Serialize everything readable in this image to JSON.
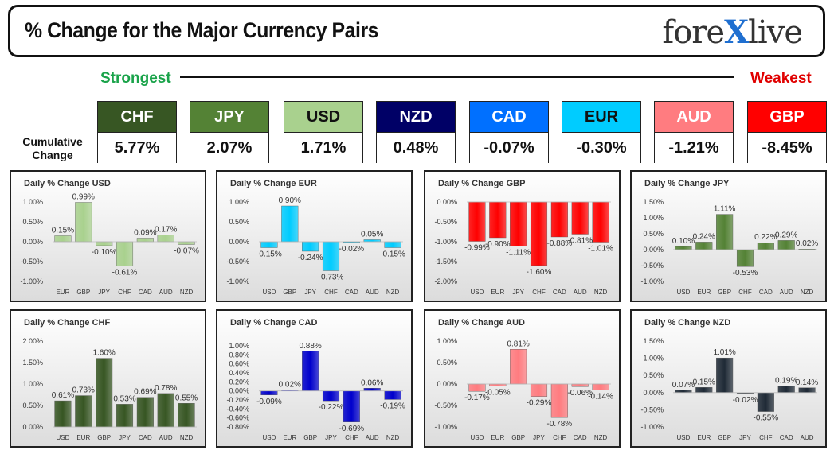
{
  "header": {
    "title": "% Change for the Major Currency Pairs",
    "logo_left": "fore",
    "logo_x": "X",
    "logo_right": "live"
  },
  "scale": {
    "strongest": "Strongest",
    "weakest": "Weakest"
  },
  "cumulative": {
    "label_line1": "Cumulative",
    "label_line2": "Change",
    "items": [
      {
        "code": "CHF",
        "value": "5.77%",
        "bg": "#375623",
        "fg": "#ffffff"
      },
      {
        "code": "JPY",
        "value": "2.07%",
        "bg": "#548235",
        "fg": "#ffffff"
      },
      {
        "code": "USD",
        "value": "1.71%",
        "bg": "#a9d18e",
        "fg": "#111111"
      },
      {
        "code": "NZD",
        "value": "0.48%",
        "bg": "#000066",
        "fg": "#ffffff"
      },
      {
        "code": "CAD",
        "value": "-0.07%",
        "bg": "#0070ff",
        "fg": "#ffffff"
      },
      {
        "code": "EUR",
        "value": "-0.30%",
        "bg": "#00ccff",
        "fg": "#111111"
      },
      {
        "code": "AUD",
        "value": "-1.21%",
        "bg": "#ff7c80",
        "fg": "#ffffff"
      },
      {
        "code": "GBP",
        "value": "-8.45%",
        "bg": "#ff0000",
        "fg": "#ffffff"
      }
    ]
  },
  "chart_data": [
    {
      "type": "bar",
      "title": "Daily % Change USD",
      "categories": [
        "EUR",
        "GBP",
        "JPY",
        "CHF",
        "CAD",
        "AUD",
        "NZD"
      ],
      "values": [
        0.15,
        0.99,
        -0.1,
        -0.61,
        0.09,
        0.17,
        -0.07
      ],
      "labels": [
        "0.15%",
        "0.99%",
        "-0.10%",
        "-0.61%",
        "0.09%",
        "0.17%",
        "-0.07%"
      ],
      "ylim": [
        -1.0,
        1.0
      ],
      "yticks": [
        "1.00%",
        "0.50%",
        "0.00%",
        "-0.50%",
        "-1.00%"
      ],
      "ytick_values": [
        1.0,
        0.5,
        0.0,
        -0.5,
        -1.0
      ],
      "color": "#a9d18e"
    },
    {
      "type": "bar",
      "title": "Daily % Change EUR",
      "categories": [
        "USD",
        "GBP",
        "JPY",
        "CHF",
        "CAD",
        "AUD",
        "NZD"
      ],
      "values": [
        -0.15,
        0.9,
        -0.24,
        -0.73,
        -0.02,
        0.05,
        -0.15
      ],
      "labels": [
        "-0.15%",
        "0.90%",
        "-0.24%",
        "-0.73%",
        "-0.02%",
        "0.05%",
        "-0.15%"
      ],
      "ylim": [
        -1.0,
        1.0
      ],
      "yticks": [
        "1.00%",
        "0.50%",
        "0.00%",
        "-0.50%",
        "-1.00%"
      ],
      "ytick_values": [
        1.0,
        0.5,
        0.0,
        -0.5,
        -1.0
      ],
      "color": "#00ccff"
    },
    {
      "type": "bar",
      "title": "Daily % Change GBP",
      "categories": [
        "USD",
        "EUR",
        "JPY",
        "CHF",
        "CAD",
        "AUD",
        "NZD"
      ],
      "values": [
        -0.99,
        -0.9,
        -1.11,
        -1.6,
        -0.88,
        -0.81,
        -1.01
      ],
      "labels": [
        "-0.99%",
        "-0.90%",
        "-1.11%",
        "-1.60%",
        "-0.88%",
        "-0.81%",
        "-1.01%"
      ],
      "ylim": [
        -2.0,
        0.0
      ],
      "yticks": [
        "0.00%",
        "-0.50%",
        "-1.00%",
        "-1.50%",
        "-2.00%"
      ],
      "ytick_values": [
        0.0,
        -0.5,
        -1.0,
        -1.5,
        -2.0
      ],
      "color": "#ff0000"
    },
    {
      "type": "bar",
      "title": "Daily % Change JPY",
      "categories": [
        "USD",
        "EUR",
        "GBP",
        "CHF",
        "CAD",
        "AUD",
        "NZD"
      ],
      "values": [
        0.1,
        0.24,
        1.11,
        -0.53,
        0.22,
        0.29,
        0.02
      ],
      "labels": [
        "0.10%",
        "0.24%",
        "1.11%",
        "-0.53%",
        "0.22%",
        "0.29%",
        "0.02%"
      ],
      "ylim": [
        -1.0,
        1.5
      ],
      "yticks": [
        "1.50%",
        "1.00%",
        "0.50%",
        "0.00%",
        "-0.50%",
        "-1.00%"
      ],
      "ytick_values": [
        1.5,
        1.0,
        0.5,
        0.0,
        -0.5,
        -1.0
      ],
      "color": "#548235"
    },
    {
      "type": "bar",
      "title": "Daily % Change CHF",
      "categories": [
        "USD",
        "EUR",
        "GBP",
        "JPY",
        "CAD",
        "AUD",
        "NZD"
      ],
      "values": [
        0.61,
        0.73,
        1.6,
        0.53,
        0.69,
        0.78,
        0.55
      ],
      "labels": [
        "0.61%",
        "0.73%",
        "1.60%",
        "0.53%",
        "0.69%",
        "0.78%",
        "0.55%"
      ],
      "ylim": [
        0.0,
        2.0
      ],
      "yticks": [
        "2.00%",
        "1.50%",
        "1.00%",
        "0.50%",
        "0.00%"
      ],
      "ytick_values": [
        2.0,
        1.5,
        1.0,
        0.5,
        0.0
      ],
      "color": "#375623"
    },
    {
      "type": "bar",
      "title": "Daily % Change CAD",
      "categories": [
        "USD",
        "EUR",
        "GBP",
        "JPY",
        "CHF",
        "AUD",
        "NZD"
      ],
      "values": [
        -0.09,
        0.02,
        0.88,
        -0.22,
        -0.69,
        0.06,
        -0.19
      ],
      "labels": [
        "-0.09%",
        "0.02%",
        "0.88%",
        "-0.22%",
        "-0.69%",
        "0.06%",
        "-0.19%"
      ],
      "ylim": [
        -0.8,
        1.0
      ],
      "yticks": [
        "1.00%",
        "0.80%",
        "0.60%",
        "0.40%",
        "0.20%",
        "0.00%",
        "-0.20%",
        "-0.40%",
        "-0.60%",
        "-0.80%"
      ],
      "ytick_values": [
        1.0,
        0.8,
        0.6,
        0.4,
        0.2,
        0.0,
        -0.2,
        -0.4,
        -0.6,
        -0.8
      ],
      "color": "#0000cc"
    },
    {
      "type": "bar",
      "title": "Daily % Change AUD",
      "categories": [
        "USD",
        "EUR",
        "GBP",
        "JPY",
        "CHF",
        "CAD",
        "NZD"
      ],
      "values": [
        -0.17,
        -0.05,
        0.81,
        -0.29,
        -0.78,
        -0.06,
        -0.14
      ],
      "labels": [
        "-0.17%",
        "-0.05%",
        "0.81%",
        "-0.29%",
        "-0.78%",
        "-0.06%",
        "-0.14%"
      ],
      "ylim": [
        -1.0,
        1.0
      ],
      "yticks": [
        "1.00%",
        "0.50%",
        "0.00%",
        "-0.50%",
        "-1.00%"
      ],
      "ytick_values": [
        1.0,
        0.5,
        0.0,
        -0.5,
        -1.0
      ],
      "color": "#ff7c80"
    },
    {
      "type": "bar",
      "title": "Daily % Change NZD",
      "categories": [
        "USD",
        "EUR",
        "GBP",
        "JPY",
        "CHF",
        "CAD",
        "AUD"
      ],
      "values": [
        0.07,
        0.15,
        1.01,
        -0.02,
        -0.55,
        0.19,
        0.14
      ],
      "labels": [
        "0.07%",
        "0.15%",
        "1.01%",
        "-0.02%",
        "-0.55%",
        "0.19%",
        "0.14%"
      ],
      "ylim": [
        -1.0,
        1.5
      ],
      "yticks": [
        "1.50%",
        "1.00%",
        "0.50%",
        "0.00%",
        "-0.50%",
        "-1.00%"
      ],
      "ytick_values": [
        1.5,
        1.0,
        0.5,
        0.0,
        -0.5,
        -1.0
      ],
      "color": "#1f2a36"
    }
  ]
}
